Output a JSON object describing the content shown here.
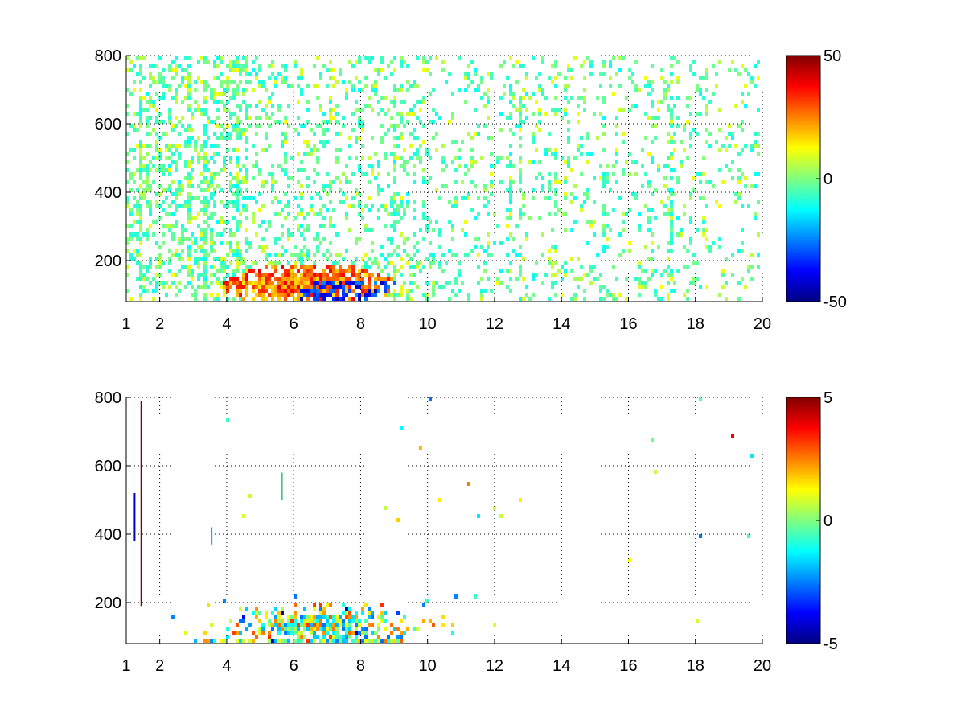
{
  "chart_data": [
    {
      "type": "heatmap",
      "title": "",
      "xlabel": "",
      "ylabel": "",
      "xlim": [
        1,
        20
      ],
      "ylim": [
        80,
        800
      ],
      "x_ticks": [
        "1",
        "2",
        "4",
        "6",
        "8",
        "10",
        "12",
        "14",
        "16",
        "18",
        "20"
      ],
      "y_ticks": [
        "200",
        "400",
        "600",
        "800"
      ],
      "grid": true,
      "colormap": "jet",
      "colorbar": {
        "range": [
          -50,
          50
        ],
        "tick_labels": [
          "50",
          "0",
          "-50"
        ],
        "placement": "right"
      },
      "hotspot": {
        "x_center": 6.5,
        "x_spread": 2.2,
        "y_center": 125,
        "y_spread": 55,
        "peak_red": 40,
        "peak_blue": -45
      }
    },
    {
      "type": "heatmap",
      "title": "",
      "xlabel": "",
      "ylabel": "",
      "xlim": [
        1,
        20
      ],
      "ylim": [
        80,
        800
      ],
      "x_ticks": [
        "1",
        "2",
        "4",
        "6",
        "8",
        "10",
        "12",
        "14",
        "16",
        "18",
        "20"
      ],
      "y_ticks": [
        "200",
        "400",
        "600",
        "800"
      ],
      "grid": true,
      "colormap": "jet",
      "colorbar": {
        "range": [
          -5,
          5
        ],
        "tick_labels": [
          "5",
          "0",
          "-5"
        ],
        "placement": "right"
      },
      "hotspot": {
        "x_center": 7,
        "x_spread": 2.2,
        "y_center": 130,
        "y_spread": 45,
        "peak_red": 4,
        "peak_blue": -4.5
      }
    }
  ]
}
